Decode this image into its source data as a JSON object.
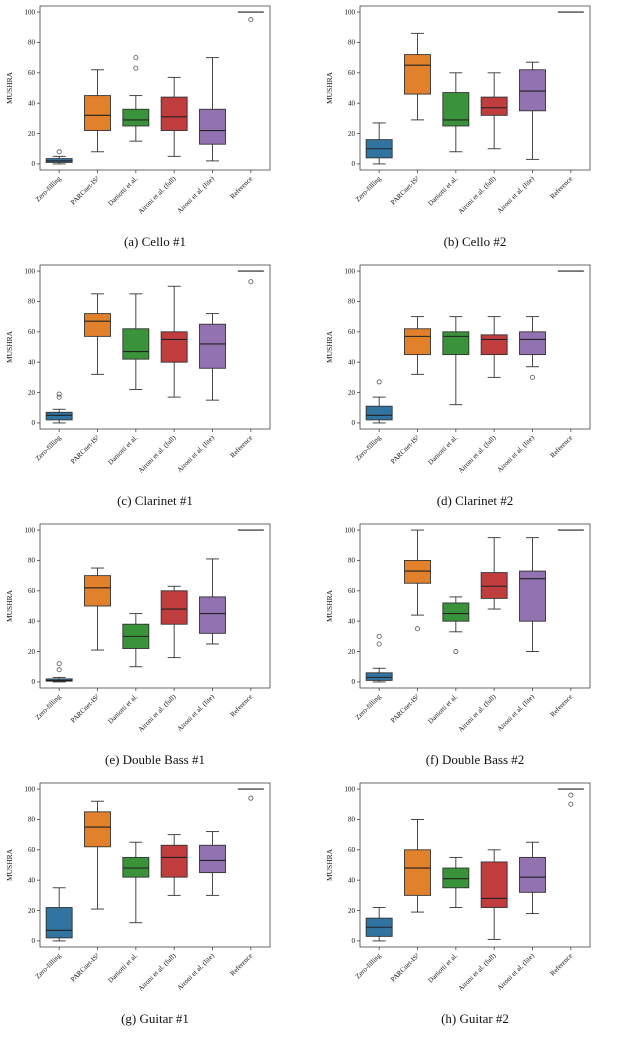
{
  "figure": {
    "ylabel": "MUSHRA",
    "axis_color": "#444444",
    "box_edge_color": "#333333"
  },
  "chart_data": [
    {
      "type": "box",
      "caption": "(a) Cello #1",
      "ylabel": "MUSHRA",
      "ylim": [
        0,
        100
      ],
      "yticks": [
        0,
        20,
        40,
        60,
        80,
        100
      ],
      "categories": [
        "Zero-filling",
        "PARCnet-IS²",
        "Daniotti et al.",
        "Aironi et al. (full)",
        "Aironi et al. (lite)",
        "Reference"
      ],
      "boxes": [
        {
          "label": "Zero-filling",
          "color": "#3274a1",
          "whislo": 0,
          "q1": 1,
          "med": 2,
          "q3": 3.5,
          "whishi": 5,
          "outliers": [
            8
          ]
        },
        {
          "label": "PARCnet-IS²",
          "color": "#e1812c",
          "whislo": 8,
          "q1": 22,
          "med": 32,
          "q3": 45,
          "whishi": 62,
          "outliers": []
        },
        {
          "label": "Daniotti et al.",
          "color": "#3a923a",
          "whislo": 15,
          "q1": 25,
          "med": 29,
          "q3": 36,
          "whishi": 45,
          "outliers": [
            63,
            70
          ]
        },
        {
          "label": "Aironi et al. (full)",
          "color": "#c03d3e",
          "whislo": 5,
          "q1": 22,
          "med": 31,
          "q3": 44,
          "whishi": 57,
          "outliers": []
        },
        {
          "label": "Aironi et al. (lite)",
          "color": "#9372b2",
          "whislo": 2,
          "q1": 13,
          "med": 22,
          "q3": 36,
          "whishi": 70,
          "outliers": []
        },
        {
          "label": "Reference",
          "color": "#000000",
          "line": 100,
          "outliers": [
            95
          ]
        }
      ]
    },
    {
      "type": "box",
      "caption": "(b) Cello #2",
      "ylabel": "MUSHRA",
      "ylim": [
        0,
        100
      ],
      "yticks": [
        0,
        20,
        40,
        60,
        80,
        100
      ],
      "categories": [
        "Zero-filling",
        "PARCnet-IS²",
        "Daniotti et al.",
        "Aironi et al. (full)",
        "Aironi et al. (lite)",
        "Reference"
      ],
      "boxes": [
        {
          "label": "Zero-filling",
          "color": "#3274a1",
          "whislo": 0,
          "q1": 4,
          "med": 10,
          "q3": 16,
          "whishi": 27,
          "outliers": []
        },
        {
          "label": "PARCnet-IS²",
          "color": "#e1812c",
          "whislo": 29,
          "q1": 46,
          "med": 65,
          "q3": 72,
          "whishi": 86,
          "outliers": []
        },
        {
          "label": "Daniotti et al.",
          "color": "#3a923a",
          "whislo": 8,
          "q1": 25,
          "med": 29,
          "q3": 47,
          "whishi": 60,
          "outliers": []
        },
        {
          "label": "Aironi et al. (full)",
          "color": "#c03d3e",
          "whislo": 10,
          "q1": 32,
          "med": 37,
          "q3": 44,
          "whishi": 60,
          "outliers": []
        },
        {
          "label": "Aironi et al. (lite)",
          "color": "#9372b2",
          "whislo": 3,
          "q1": 35,
          "med": 48,
          "q3": 62,
          "whishi": 67,
          "outliers": []
        },
        {
          "label": "Reference",
          "color": "#000000",
          "line": 100,
          "outliers": []
        }
      ]
    },
    {
      "type": "box",
      "caption": "(c) Clarinet #1",
      "ylabel": "MUSHRA",
      "ylim": [
        0,
        100
      ],
      "yticks": [
        0,
        20,
        40,
        60,
        80,
        100
      ],
      "categories": [
        "Zero-filling",
        "PARCnet-IS²",
        "Daniotti et al.",
        "Aironi et al. (full)",
        "Aironi et al. (lite)",
        "Reference"
      ],
      "boxes": [
        {
          "label": "Zero-filling",
          "color": "#3274a1",
          "whislo": 0,
          "q1": 2,
          "med": 5,
          "q3": 7,
          "whishi": 9,
          "outliers": [
            17,
            19
          ]
        },
        {
          "label": "PARCnet-IS²",
          "color": "#e1812c",
          "whislo": 32,
          "q1": 57,
          "med": 67,
          "q3": 72,
          "whishi": 85,
          "outliers": []
        },
        {
          "label": "Daniotti et al.",
          "color": "#3a923a",
          "whislo": 22,
          "q1": 42,
          "med": 47,
          "q3": 62,
          "whishi": 85,
          "outliers": []
        },
        {
          "label": "Aironi et al. (full)",
          "color": "#c03d3e",
          "whislo": 17,
          "q1": 40,
          "med": 55,
          "q3": 60,
          "whishi": 90,
          "outliers": []
        },
        {
          "label": "Aironi et al. (lite)",
          "color": "#9372b2",
          "whislo": 15,
          "q1": 36,
          "med": 52,
          "q3": 65,
          "whishi": 72,
          "outliers": []
        },
        {
          "label": "Reference",
          "color": "#000000",
          "line": 100,
          "outliers": [
            93
          ]
        }
      ]
    },
    {
      "type": "box",
      "caption": "(d) Clarinet #2",
      "ylabel": "MUSHRA",
      "ylim": [
        0,
        100
      ],
      "yticks": [
        0,
        20,
        40,
        60,
        80,
        100
      ],
      "categories": [
        "Zero-filling",
        "PARCnet-IS²",
        "Daniotti et al.",
        "Aironi et al. (full)",
        "Aironi et al. (lite)",
        "Reference"
      ],
      "boxes": [
        {
          "label": "Zero-filling",
          "color": "#3274a1",
          "whislo": 0,
          "q1": 2,
          "med": 5,
          "q3": 11,
          "whishi": 17,
          "outliers": [
            27
          ]
        },
        {
          "label": "PARCnet-IS²",
          "color": "#e1812c",
          "whislo": 32,
          "q1": 45,
          "med": 57,
          "q3": 62,
          "whishi": 70,
          "outliers": []
        },
        {
          "label": "Daniotti et al.",
          "color": "#3a923a",
          "whislo": 12,
          "q1": 45,
          "med": 57,
          "q3": 60,
          "whishi": 70,
          "outliers": []
        },
        {
          "label": "Aironi et al. (full)",
          "color": "#c03d3e",
          "whislo": 30,
          "q1": 45,
          "med": 55,
          "q3": 58,
          "whishi": 70,
          "outliers": []
        },
        {
          "label": "Aironi et al. (lite)",
          "color": "#9372b2",
          "whislo": 37,
          "q1": 45,
          "med": 55,
          "q3": 60,
          "whishi": 70,
          "outliers": [
            30
          ]
        },
        {
          "label": "Reference",
          "color": "#000000",
          "line": 100,
          "outliers": []
        }
      ]
    },
    {
      "type": "box",
      "caption": "(e) Double Bass #1",
      "ylabel": "MUSHRA",
      "ylim": [
        0,
        100
      ],
      "yticks": [
        0,
        20,
        40,
        60,
        80,
        100
      ],
      "categories": [
        "Zero-filling",
        "PARCnet-IS²",
        "Daniotti et al.",
        "Aironi et al. (full)",
        "Aironi et al. (lite)",
        "Reference"
      ],
      "boxes": [
        {
          "label": "Zero-filling",
          "color": "#3274a1",
          "whislo": 0,
          "q1": 0.5,
          "med": 1,
          "q3": 2,
          "whishi": 3,
          "outliers": [
            8,
            12
          ]
        },
        {
          "label": "PARCnet-IS²",
          "color": "#e1812c",
          "whislo": 21,
          "q1": 50,
          "med": 62,
          "q3": 70,
          "whishi": 75,
          "outliers": []
        },
        {
          "label": "Daniotti et al.",
          "color": "#3a923a",
          "whislo": 10,
          "q1": 22,
          "med": 30,
          "q3": 38,
          "whishi": 45,
          "outliers": []
        },
        {
          "label": "Aironi et al. (full)",
          "color": "#c03d3e",
          "whislo": 16,
          "q1": 38,
          "med": 48,
          "q3": 60,
          "whishi": 63,
          "outliers": []
        },
        {
          "label": "Aironi et al. (lite)",
          "color": "#9372b2",
          "whislo": 25,
          "q1": 32,
          "med": 45,
          "q3": 56,
          "whishi": 81,
          "outliers": []
        },
        {
          "label": "Reference",
          "color": "#000000",
          "line": 100,
          "outliers": []
        }
      ]
    },
    {
      "type": "box",
      "caption": "(f) Double Bass #2",
      "ylabel": "MUSHRA",
      "ylim": [
        0,
        100
      ],
      "yticks": [
        0,
        20,
        40,
        60,
        80,
        100
      ],
      "categories": [
        "Zero-filling",
        "PARCnet-IS²",
        "Daniotti et al.",
        "Aironi et al. (full)",
        "Aironi et al. (lite)",
        "Reference"
      ],
      "boxes": [
        {
          "label": "Zero-filling",
          "color": "#3274a1",
          "whislo": 0,
          "q1": 1,
          "med": 3,
          "q3": 6,
          "whishi": 9,
          "outliers": [
            25,
            30
          ]
        },
        {
          "label": "PARCnet-IS²",
          "color": "#e1812c",
          "whislo": 44,
          "q1": 65,
          "med": 73,
          "q3": 80,
          "whishi": 100,
          "outliers": [
            35
          ]
        },
        {
          "label": "Daniotti et al.",
          "color": "#3a923a",
          "whislo": 33,
          "q1": 40,
          "med": 45,
          "q3": 52,
          "whishi": 56,
          "outliers": [
            20
          ]
        },
        {
          "label": "Aironi et al. (full)",
          "color": "#c03d3e",
          "whislo": 48,
          "q1": 55,
          "med": 63,
          "q3": 72,
          "whishi": 95,
          "outliers": []
        },
        {
          "label": "Aironi et al. (lite)",
          "color": "#9372b2",
          "whislo": 20,
          "q1": 40,
          "med": 68,
          "q3": 73,
          "whishi": 95,
          "outliers": []
        },
        {
          "label": "Reference",
          "color": "#000000",
          "line": 100,
          "outliers": []
        }
      ]
    },
    {
      "type": "box",
      "caption": "(g) Guitar #1",
      "ylabel": "MUSHRA",
      "ylim": [
        0,
        100
      ],
      "yticks": [
        0,
        20,
        40,
        60,
        80,
        100
      ],
      "categories": [
        "Zero-filling",
        "PARCnet-IS²",
        "Daniotti et al.",
        "Aironi et al. (full)",
        "Aironi et al. (lite)",
        "Reference"
      ],
      "boxes": [
        {
          "label": "Zero-filling",
          "color": "#3274a1",
          "whislo": 0,
          "q1": 2,
          "med": 7,
          "q3": 22,
          "whishi": 35,
          "outliers": []
        },
        {
          "label": "PARCnet-IS²",
          "color": "#e1812c",
          "whislo": 21,
          "q1": 62,
          "med": 75,
          "q3": 85,
          "whishi": 92,
          "outliers": []
        },
        {
          "label": "Daniotti et al.",
          "color": "#3a923a",
          "whislo": 12,
          "q1": 42,
          "med": 48,
          "q3": 55,
          "whishi": 65,
          "outliers": []
        },
        {
          "label": "Aironi et al. (full)",
          "color": "#c03d3e",
          "whislo": 30,
          "q1": 42,
          "med": 55,
          "q3": 63,
          "whishi": 70,
          "outliers": []
        },
        {
          "label": "Aironi et al. (lite)",
          "color": "#9372b2",
          "whislo": 30,
          "q1": 45,
          "med": 53,
          "q3": 63,
          "whishi": 72,
          "outliers": []
        },
        {
          "label": "Reference",
          "color": "#000000",
          "line": 100,
          "outliers": [
            94
          ]
        }
      ]
    },
    {
      "type": "box",
      "caption": "(h) Guitar #2",
      "ylabel": "MUSHRA",
      "ylim": [
        0,
        100
      ],
      "yticks": [
        0,
        20,
        40,
        60,
        80,
        100
      ],
      "categories": [
        "Zero-filling",
        "PARCnet-IS²",
        "Daniotti et al.",
        "Aironi et al. (full)",
        "Aironi et al. (lite)",
        "Reference"
      ],
      "boxes": [
        {
          "label": "Zero-filling",
          "color": "#3274a1",
          "whislo": 0,
          "q1": 3,
          "med": 9,
          "q3": 15,
          "whishi": 22,
          "outliers": []
        },
        {
          "label": "PARCnet-IS²",
          "color": "#e1812c",
          "whislo": 19,
          "q1": 30,
          "med": 48,
          "q3": 60,
          "whishi": 80,
          "outliers": []
        },
        {
          "label": "Daniotti et al.",
          "color": "#3a923a",
          "whislo": 22,
          "q1": 35,
          "med": 41,
          "q3": 48,
          "whishi": 55,
          "outliers": []
        },
        {
          "label": "Aironi et al. (full)",
          "color": "#c03d3e",
          "whislo": 1,
          "q1": 22,
          "med": 28,
          "q3": 52,
          "whishi": 60,
          "outliers": []
        },
        {
          "label": "Aironi et al. (lite)",
          "color": "#9372b2",
          "whislo": 18,
          "q1": 32,
          "med": 42,
          "q3": 55,
          "whishi": 65,
          "outliers": []
        },
        {
          "label": "Reference",
          "color": "#000000",
          "line": 100,
          "outliers": [
            90,
            96
          ]
        }
      ]
    }
  ]
}
